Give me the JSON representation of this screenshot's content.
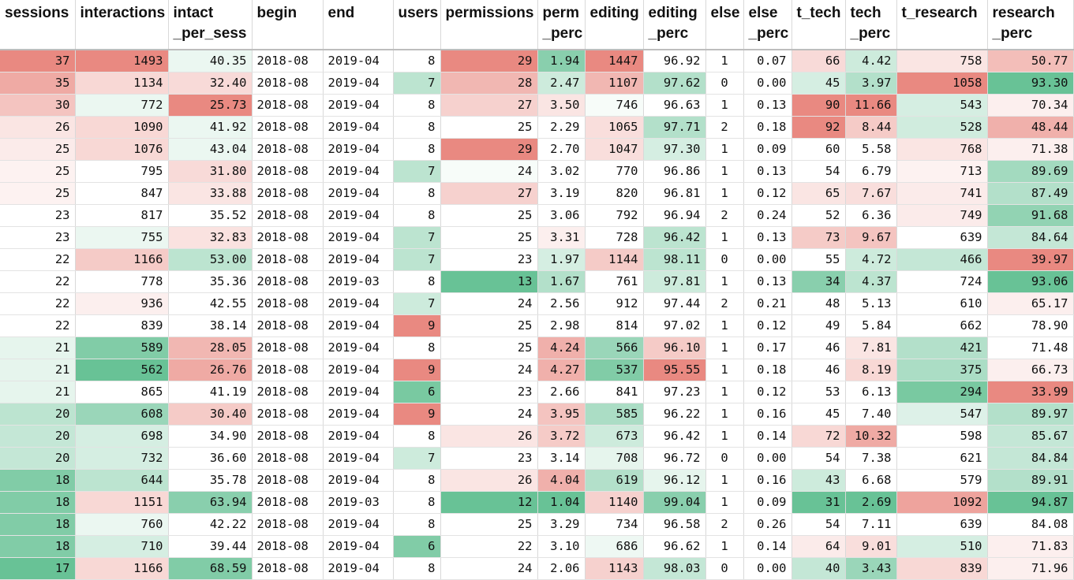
{
  "columns": [
    {
      "key": "sessions",
      "label_top": "sessions",
      "label_bottom": "",
      "align": "right"
    },
    {
      "key": "interactions",
      "label_top": "interactions",
      "label_bottom": "",
      "align": "right"
    },
    {
      "key": "intact_per_sess",
      "label_top": "intact",
      "label_bottom": "_per_sess",
      "align": "right"
    },
    {
      "key": "begin",
      "label_top": "begin",
      "label_bottom": "",
      "align": "left"
    },
    {
      "key": "end",
      "label_top": "end",
      "label_bottom": "",
      "align": "left"
    },
    {
      "key": "users",
      "label_top": "users",
      "label_bottom": "",
      "align": "right"
    },
    {
      "key": "permissions",
      "label_top": "permissions",
      "label_bottom": "",
      "align": "right"
    },
    {
      "key": "perm_perc",
      "label_top": "perm",
      "label_bottom": "_perc",
      "align": "right"
    },
    {
      "key": "editing",
      "label_top": "editing",
      "label_bottom": "",
      "align": "right"
    },
    {
      "key": "editing_perc",
      "label_top": "editing",
      "label_bottom": "_perc",
      "align": "right"
    },
    {
      "key": "else",
      "label_top": "else",
      "label_bottom": "",
      "align": "center"
    },
    {
      "key": "else_perc",
      "label_top": "else",
      "label_bottom": "_perc",
      "align": "right"
    },
    {
      "key": "t_tech",
      "label_top": "t_tech",
      "label_bottom": "",
      "align": "right"
    },
    {
      "key": "tech_perc",
      "label_top": "tech",
      "label_bottom": "_perc",
      "align": "right"
    },
    {
      "key": "t_research",
      "label_top": "t_research",
      "label_bottom": "",
      "align": "right"
    },
    {
      "key": "research_perc",
      "label_top": "research",
      "label_bottom": "_perc",
      "align": "right"
    }
  ],
  "rows": [
    [
      "37",
      "1493",
      "40.35",
      "2018-08",
      "2019-04",
      "8",
      "29",
      "1.94",
      "1447",
      "96.92",
      "1",
      "0.07",
      "66",
      "4.42",
      "758",
      "50.77"
    ],
    [
      "35",
      "1134",
      "32.40",
      "2018-08",
      "2019-04",
      "7",
      "28",
      "2.47",
      "1107",
      "97.62",
      "0",
      "0.00",
      "45",
      "3.97",
      "1058",
      "93.30"
    ],
    [
      "30",
      "772",
      "25.73",
      "2018-08",
      "2019-04",
      "8",
      "27",
      "3.50",
      "746",
      "96.63",
      "1",
      "0.13",
      "90",
      "11.66",
      "543",
      "70.34"
    ],
    [
      "26",
      "1090",
      "41.92",
      "2018-08",
      "2019-04",
      "8",
      "25",
      "2.29",
      "1065",
      "97.71",
      "2",
      "0.18",
      "92",
      "8.44",
      "528",
      "48.44"
    ],
    [
      "25",
      "1076",
      "43.04",
      "2018-08",
      "2019-04",
      "8",
      "29",
      "2.70",
      "1047",
      "97.30",
      "1",
      "0.09",
      "60",
      "5.58",
      "768",
      "71.38"
    ],
    [
      "25",
      "795",
      "31.80",
      "2018-08",
      "2019-04",
      "7",
      "24",
      "3.02",
      "770",
      "96.86",
      "1",
      "0.13",
      "54",
      "6.79",
      "713",
      "89.69"
    ],
    [
      "25",
      "847",
      "33.88",
      "2018-08",
      "2019-04",
      "8",
      "27",
      "3.19",
      "820",
      "96.81",
      "1",
      "0.12",
      "65",
      "7.67",
      "741",
      "87.49"
    ],
    [
      "23",
      "817",
      "35.52",
      "2018-08",
      "2019-04",
      "8",
      "25",
      "3.06",
      "792",
      "96.94",
      "2",
      "0.24",
      "52",
      "6.36",
      "749",
      "91.68"
    ],
    [
      "23",
      "755",
      "32.83",
      "2018-08",
      "2019-04",
      "7",
      "25",
      "3.31",
      "728",
      "96.42",
      "1",
      "0.13",
      "73",
      "9.67",
      "639",
      "84.64"
    ],
    [
      "22",
      "1166",
      "53.00",
      "2018-08",
      "2019-04",
      "7",
      "23",
      "1.97",
      "1144",
      "98.11",
      "0",
      "0.00",
      "55",
      "4.72",
      "466",
      "39.97"
    ],
    [
      "22",
      "778",
      "35.36",
      "2018-08",
      "2019-03",
      "8",
      "13",
      "1.67",
      "761",
      "97.81",
      "1",
      "0.13",
      "34",
      "4.37",
      "724",
      "93.06"
    ],
    [
      "22",
      "936",
      "42.55",
      "2018-08",
      "2019-04",
      "7",
      "24",
      "2.56",
      "912",
      "97.44",
      "2",
      "0.21",
      "48",
      "5.13",
      "610",
      "65.17"
    ],
    [
      "22",
      "839",
      "38.14",
      "2018-08",
      "2019-04",
      "9",
      "25",
      "2.98",
      "814",
      "97.02",
      "1",
      "0.12",
      "49",
      "5.84",
      "662",
      "78.90"
    ],
    [
      "21",
      "589",
      "28.05",
      "2018-08",
      "2019-04",
      "8",
      "25",
      "4.24",
      "566",
      "96.10",
      "1",
      "0.17",
      "46",
      "7.81",
      "421",
      "71.48"
    ],
    [
      "21",
      "562",
      "26.76",
      "2018-08",
      "2019-04",
      "9",
      "24",
      "4.27",
      "537",
      "95.55",
      "1",
      "0.18",
      "46",
      "8.19",
      "375",
      "66.73"
    ],
    [
      "21",
      "865",
      "41.19",
      "2018-08",
      "2019-04",
      "6",
      "23",
      "2.66",
      "841",
      "97.23",
      "1",
      "0.12",
      "53",
      "6.13",
      "294",
      "33.99"
    ],
    [
      "20",
      "608",
      "30.40",
      "2018-08",
      "2019-04",
      "9",
      "24",
      "3.95",
      "585",
      "96.22",
      "1",
      "0.16",
      "45",
      "7.40",
      "547",
      "89.97"
    ],
    [
      "20",
      "698",
      "34.90",
      "2018-08",
      "2019-04",
      "8",
      "26",
      "3.72",
      "673",
      "96.42",
      "1",
      "0.14",
      "72",
      "10.32",
      "598",
      "85.67"
    ],
    [
      "20",
      "732",
      "36.60",
      "2018-08",
      "2019-04",
      "7",
      "23",
      "3.14",
      "708",
      "96.72",
      "0",
      "0.00",
      "54",
      "7.38",
      "621",
      "84.84"
    ],
    [
      "18",
      "644",
      "35.78",
      "2018-08",
      "2019-04",
      "8",
      "26",
      "4.04",
      "619",
      "96.12",
      "1",
      "0.16",
      "43",
      "6.68",
      "579",
      "89.91"
    ],
    [
      "18",
      "1151",
      "63.94",
      "2018-08",
      "2019-03",
      "8",
      "12",
      "1.04",
      "1140",
      "99.04",
      "1",
      "0.09",
      "31",
      "2.69",
      "1092",
      "94.87"
    ],
    [
      "18",
      "760",
      "42.22",
      "2018-08",
      "2019-04",
      "8",
      "25",
      "3.29",
      "734",
      "96.58",
      "2",
      "0.26",
      "54",
      "7.11",
      "639",
      "84.08"
    ],
    [
      "18",
      "710",
      "39.44",
      "2018-08",
      "2019-04",
      "6",
      "22",
      "3.10",
      "686",
      "96.62",
      "1",
      "0.14",
      "64",
      "9.01",
      "510",
      "71.83"
    ],
    [
      "17",
      "1166",
      "68.59",
      "2018-08",
      "2019-04",
      "8",
      "24",
      "2.06",
      "1143",
      "98.03",
      "0",
      "0.00",
      "40",
      "3.43",
      "839",
      "71.96"
    ]
  ],
  "colors": {
    "red": "#e67c73",
    "white": "#ffffff",
    "green": "#57bb8a",
    "header_border": "#bdbdbd",
    "grid_line": "#d9d9d9"
  },
  "cell_fill_scale": "red-white-green diverging color scale per column (which end is red or green varies by column, 1.0 = full color)",
  "cell_fills": [
    [
      "r0.90",
      "r0.90",
      "g0.12",
      "",
      "",
      "",
      "r0.90",
      "g0.70",
      "r0.90",
      "",
      "",
      "",
      "r0.28",
      "g0.30",
      "r0.20",
      "r0.50"
    ],
    [
      "r0.65",
      "r0.30",
      "r0.28",
      "",
      "",
      "g0.40",
      "r0.55",
      "g0.30",
      "r0.55",
      "g0.45",
      "",
      "",
      "g0.25",
      "g0.45",
      "r0.90",
      "g0.90"
    ],
    [
      "r0.45",
      "g0.12",
      "r0.90",
      "",
      "",
      "",
      "r0.35",
      "r0.20",
      "g0.05",
      "",
      "",
      "",
      "r0.90",
      "r0.90",
      "g0.25",
      "r0.12"
    ],
    [
      "r0.20",
      "r0.30",
      "g0.12",
      "",
      "",
      "",
      "",
      "",
      "r0.25",
      "g0.45",
      "",
      "",
      "r0.90",
      "r0.40",
      "g0.28",
      "r0.60"
    ],
    [
      "r0.15",
      "r0.30",
      "g0.12",
      "",
      "",
      "",
      "r0.90",
      "",
      "r0.25",
      "g0.25",
      "",
      "",
      "",
      "",
      "r0.20",
      "r0.12"
    ],
    [
      "r0.10",
      "",
      "r0.28",
      "",
      "",
      "g0.40",
      "g0.05",
      "",
      "",
      "",
      "",
      "",
      "",
      "",
      "r0.10",
      "g0.55"
    ],
    [
      "r0.10",
      "",
      "r0.20",
      "",
      "",
      "",
      "r0.35",
      "",
      "",
      "",
      "",
      "",
      "r0.20",
      "r0.25",
      "r0.15",
      "g0.45"
    ],
    [
      "",
      "",
      "",
      "",
      "",
      "",
      "",
      "",
      "",
      "",
      "",
      "",
      "",
      "",
      "r0.15",
      "g0.65"
    ],
    [
      "",
      "g0.12",
      "r0.22",
      "",
      "",
      "g0.40",
      "",
      "r0.12",
      "",
      "g0.40",
      "",
      "",
      "r0.40",
      "r0.45",
      "",
      "g0.35"
    ],
    [
      "",
      "r0.40",
      "g0.40",
      "",
      "",
      "g0.40",
      "",
      "g0.25",
      "r0.40",
      "g0.40",
      "",
      "",
      "",
      "g0.30",
      "g0.35",
      "r0.90"
    ],
    [
      "",
      "",
      "",
      "",
      "",
      "",
      "g0.90",
      "g0.45",
      "",
      "g0.30",
      "",
      "",
      "g0.70",
      "g0.40",
      "",
      "g0.90"
    ],
    [
      "",
      "r0.12",
      "",
      "",
      "",
      "g0.30",
      "",
      "",
      "",
      "",
      "",
      "",
      "",
      "",
      "",
      "r0.12"
    ],
    [
      "",
      "",
      "",
      "",
      "",
      "r0.90",
      "",
      "",
      "",
      "",
      "",
      "",
      "",
      "",
      "",
      ""
    ],
    [
      "g0.15",
      "g0.75",
      "r0.55",
      "",
      "",
      "",
      "",
      "r0.60",
      "g0.60",
      "r0.40",
      "",
      "",
      "",
      "r0.20",
      "g0.45",
      ""
    ],
    [
      "g0.15",
      "g0.90",
      "r0.65",
      "",
      "",
      "r0.90",
      "",
      "r0.60",
      "g0.75",
      "r0.90",
      "",
      "",
      "",
      "r0.30",
      "g0.50",
      "r0.12"
    ],
    [
      "g0.15",
      "",
      "",
      "",
      "",
      "g0.80",
      "",
      "",
      "",
      "",
      "",
      "",
      "",
      "",
      "g0.80",
      "r0.90"
    ],
    [
      "g0.40",
      "g0.60",
      "r0.40",
      "",
      "",
      "r0.90",
      "",
      "r0.45",
      "g0.50",
      "",
      "",
      "",
      "",
      "",
      "g0.20",
      "g0.45"
    ],
    [
      "g0.35",
      "g0.25",
      "",
      "",
      "",
      "",
      "r0.20",
      "r0.40",
      "g0.30",
      "",
      "",
      "",
      "r0.30",
      "r0.65",
      "",
      "g0.35"
    ],
    [
      "g0.35",
      "g0.25",
      "",
      "",
      "",
      "g0.30",
      "",
      "",
      "g0.15",
      "",
      "",
      "",
      "",
      "",
      "",
      "g0.35"
    ],
    [
      "g0.75",
      "g0.40",
      "",
      "",
      "",
      "",
      "r0.20",
      "r0.60",
      "g0.45",
      "g0.15",
      "",
      "",
      "g0.30",
      "",
      "",
      "g0.45"
    ],
    [
      "g0.75",
      "r0.30",
      "g0.70",
      "",
      "",
      "",
      "g0.90",
      "g0.90",
      "r0.35",
      "g0.70",
      "",
      "",
      "g0.90",
      "g0.90",
      "r0.70",
      "g0.90"
    ],
    [
      "g0.75",
      "g0.12",
      "",
      "",
      "",
      "",
      "",
      "",
      "",
      "",
      "",
      "",
      "",
      "",
      "",
      ""
    ],
    [
      "g0.75",
      "g0.25",
      "",
      "",
      "",
      "g0.75",
      "",
      "",
      "g0.10",
      "",
      "",
      "",
      "r0.15",
      "r0.25",
      "g0.25",
      "r0.12"
    ],
    [
      "g0.90",
      "r0.30",
      "g0.75",
      "",
      "",
      "",
      "",
      "",
      "r0.35",
      "g0.35",
      "",
      "",
      "g0.35",
      "g0.60",
      "r0.30",
      "r0.12"
    ]
  ]
}
